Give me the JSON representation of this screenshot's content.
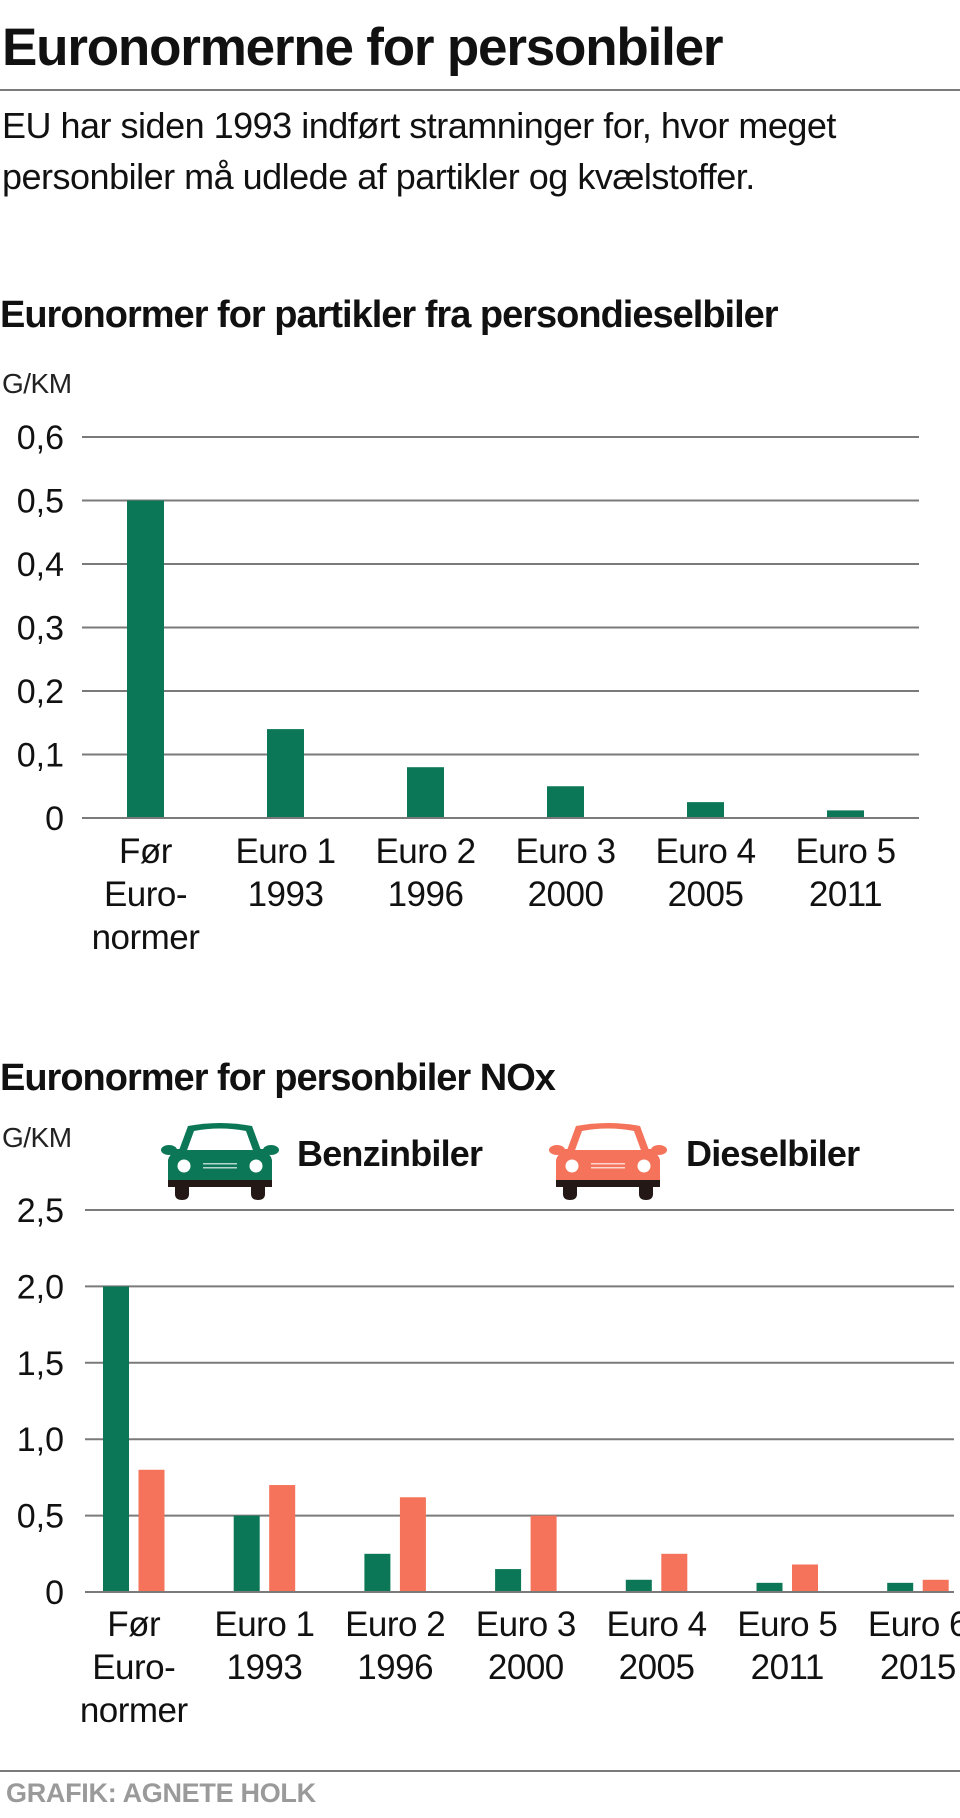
{
  "header": {
    "title": "Euronormerne for personbiler",
    "subtitle": "EU har siden 1993 indført stramninger for, hvor meget personbiler må udlede af partikler og kvælstoffer."
  },
  "colors": {
    "benzin": "#0c7757",
    "diesel": "#f4735a",
    "grid": "#7a7a7a",
    "footer": "#9a9a9a"
  },
  "footer": {
    "credit": "GRAFIK: AGNETE HOLK"
  },
  "chart_data": [
    {
      "type": "bar",
      "title": "Euronormer for partikler fra persondieselbiler",
      "ylabel": "G/KM",
      "xlabel": "",
      "ylim": [
        0,
        0.6
      ],
      "yticks": [
        0,
        0.1,
        0.2,
        0.3,
        0.4,
        0.5,
        0.6
      ],
      "ytick_labels": [
        "0",
        "0,1",
        "0,2",
        "0,3",
        "0,4",
        "0,5",
        "0,6"
      ],
      "grid": true,
      "categories": [
        [
          "Før",
          "Euro-",
          "normer"
        ],
        [
          "Euro 1",
          "1993"
        ],
        [
          "Euro 2",
          "1996"
        ],
        [
          "Euro 3",
          "2000"
        ],
        [
          "Euro 4",
          "2005"
        ],
        [
          "Euro 5",
          "2011"
        ]
      ],
      "series": [
        {
          "name": "Dieselbiler",
          "color": "#0c7757",
          "values": [
            0.5,
            0.14,
            0.08,
            0.05,
            0.025,
            0.012
          ]
        }
      ]
    },
    {
      "type": "bar",
      "title": "Euronormer for personbiler NOx",
      "ylabel": "G/KM",
      "xlabel": "",
      "ylim": [
        0,
        2.5
      ],
      "yticks": [
        0,
        0.5,
        1.0,
        1.5,
        2.0,
        2.5
      ],
      "ytick_labels": [
        "0",
        "0,5",
        "1,0",
        "1,5",
        "2,0",
        "2,5"
      ],
      "grid": true,
      "legend": "top",
      "categories": [
        [
          "Før",
          "Euro-",
          "normer"
        ],
        [
          "Euro 1",
          "1993"
        ],
        [
          "Euro 2",
          "1996"
        ],
        [
          "Euro 3",
          "2000"
        ],
        [
          "Euro 4",
          "2005"
        ],
        [
          "Euro 5",
          "2011"
        ],
        [
          "Euro 6",
          "2015"
        ]
      ],
      "series": [
        {
          "name": "Benzinbiler",
          "color": "#0c7757",
          "icon": "car-icon",
          "values": [
            2.0,
            0.5,
            0.25,
            0.15,
            0.08,
            0.06,
            0.06
          ]
        },
        {
          "name": "Dieselbiler",
          "color": "#f4735a",
          "icon": "car-icon",
          "values": [
            0.8,
            0.7,
            0.62,
            0.5,
            0.25,
            0.18,
            0.08
          ]
        }
      ]
    }
  ]
}
